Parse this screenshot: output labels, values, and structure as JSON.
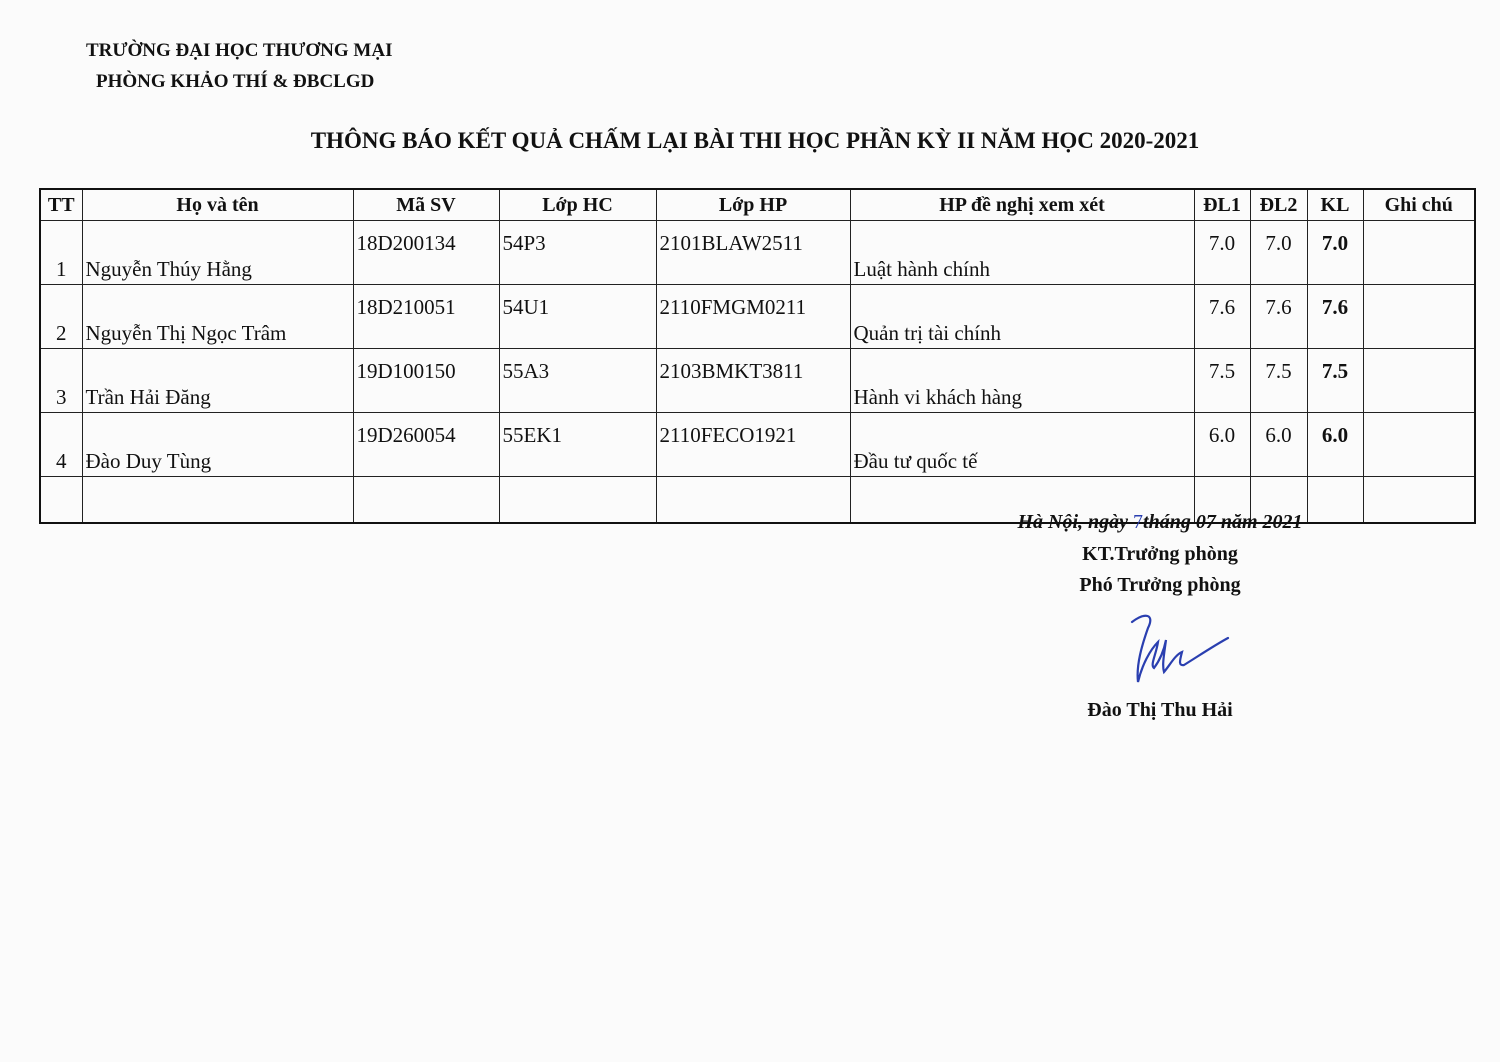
{
  "header": {
    "university": "TRƯỜNG ĐẠI HỌC THƯƠNG MẠI",
    "department": "PHÒNG KHẢO THÍ & ĐBCLGD"
  },
  "title": "THÔNG BÁO KẾT QUẢ CHẤM LẠI BÀI THI HỌC PHẦN KỲ II NĂM HỌC 2020-2021",
  "table": {
    "columns": [
      "TT",
      "Họ và tên",
      "Mã SV",
      "Lớp HC",
      "Lớp HP",
      "HP đề nghị xem xét",
      "ĐL1",
      "ĐL2",
      "KL",
      "Ghi chú"
    ],
    "rows": [
      {
        "tt": "1",
        "name": "Nguyễn Thúy Hằng",
        "msv": "18D200134",
        "lophc": "54P3",
        "lophp": "2101BLAW2511",
        "hp": "Luật hành chính",
        "dl1": "7.0",
        "dl2": "7.0",
        "kl": "7.0",
        "note": ""
      },
      {
        "tt": "2",
        "name": "Nguyễn Thị Ngọc Trâm",
        "msv": "18D210051",
        "lophc": "54U1",
        "lophp": "2110FMGM0211",
        "hp": "Quản trị tài chính",
        "dl1": "7.6",
        "dl2": "7.6",
        "kl": "7.6",
        "note": ""
      },
      {
        "tt": "3",
        "name": "Trần Hải Đăng",
        "msv": "19D100150",
        "lophc": "55A3",
        "lophp": "2103BMKT3811",
        "hp": "Hành vi khách hàng",
        "dl1": "7.5",
        "dl2": "7.5",
        "kl": "7.5",
        "note": ""
      },
      {
        "tt": "4",
        "name": "Đào Duy Tùng",
        "msv": "19D260054",
        "lophc": "55EK1",
        "lophp": "2110FECO1921",
        "hp": "Đầu tư quốc tế",
        "dl1": "6.0",
        "dl2": "6.0",
        "kl": "6.0",
        "note": ""
      }
    ]
  },
  "footer": {
    "date_prefix": "Hà Nội, ngày ",
    "date_day": "7",
    "date_suffix": "tháng 07 năm 2021",
    "role1": "KT.Trưởng phòng",
    "role2": "Phó Trưởng phòng",
    "signer": "Đào Thị Thu Hải",
    "ink_color": "#2a3fb0"
  }
}
